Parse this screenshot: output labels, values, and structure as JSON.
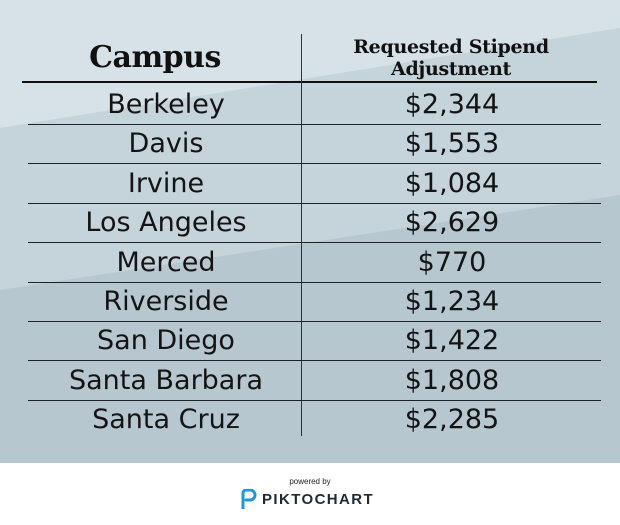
{
  "table": {
    "headers": {
      "campus": "Campus",
      "stipend_line1": "Requested Stipend",
      "stipend_line2": "Adjustment"
    },
    "rows": [
      {
        "campus": "Berkeley",
        "value": "$2,344"
      },
      {
        "campus": "Davis",
        "value": "$1,553"
      },
      {
        "campus": "Irvine",
        "value": "$1,084"
      },
      {
        "campus": "Los Angeles",
        "value": "$2,629"
      },
      {
        "campus": "Merced",
        "value": "$770"
      },
      {
        "campus": "Riverside",
        "value": "$1,234"
      },
      {
        "campus": "San Diego",
        "value": "$1,422"
      },
      {
        "campus": "Santa Barbara",
        "value": "$1,808"
      },
      {
        "campus": "Santa Cruz",
        "value": "$2,285"
      }
    ]
  },
  "footer": {
    "powered_by": "powered by",
    "brand": "PIKTOCHART",
    "logo_icon": "piktochart-logo-icon"
  },
  "colors": {
    "background": "#c5d3db",
    "accent_logo": "#1d9ad6",
    "text": "#141414"
  }
}
